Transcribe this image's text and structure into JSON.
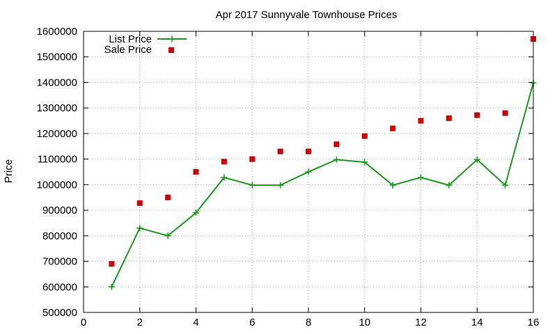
{
  "chart_data": {
    "type": "line",
    "title": "Apr 2017 Sunnyvale Townhouse Prices",
    "xlabel": "",
    "ylabel": "Price",
    "xlim": [
      0,
      16
    ],
    "ylim": [
      500000,
      1600000
    ],
    "x_ticks": [
      0,
      2,
      4,
      6,
      8,
      10,
      12,
      14,
      16
    ],
    "y_ticks": [
      500000,
      600000,
      700000,
      800000,
      900000,
      1000000,
      1100000,
      1200000,
      1300000,
      1400000,
      1500000,
      1600000
    ],
    "grid": true,
    "legend_position": "top-left",
    "x": [
      1,
      2,
      3,
      4,
      5,
      6,
      7,
      8,
      9,
      10,
      11,
      12,
      13,
      14,
      15,
      16
    ],
    "series": [
      {
        "name": "List Price",
        "style": "line-with-plus-markers",
        "color": "#1a9a1a",
        "values": [
          600000,
          830000,
          800000,
          890000,
          1028000,
          998000,
          998000,
          1050000,
          1098000,
          1088000,
          998000,
          1028000,
          998000,
          1098000,
          998000,
          1398000
        ]
      },
      {
        "name": "Sale Price",
        "style": "square-markers",
        "color": "#cc0000",
        "values": [
          690000,
          928000,
          950000,
          1050000,
          1090000,
          1100000,
          1130000,
          1130000,
          1158000,
          1190000,
          1220000,
          1250000,
          1260000,
          1272000,
          1280000,
          1570000
        ]
      }
    ]
  }
}
